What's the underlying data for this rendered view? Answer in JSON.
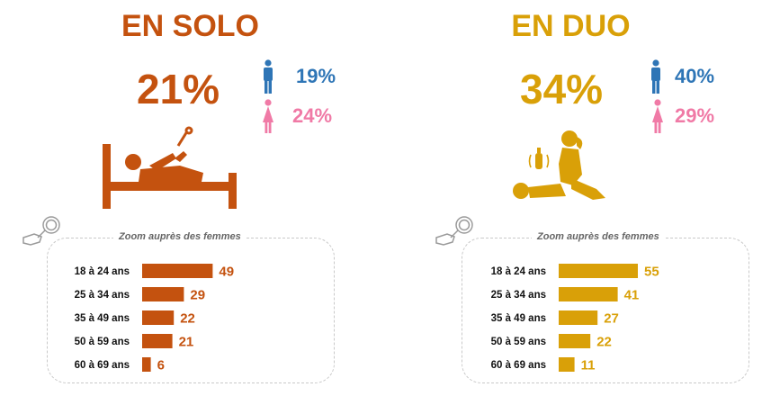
{
  "colors": {
    "solo": "#c4520f",
    "duo": "#d9a008",
    "male": "#2e75b6",
    "female": "#f07aa6"
  },
  "icons": {
    "male": "man-icon",
    "female": "woman-icon",
    "solo": "solo-illustration",
    "duo": "duo-illustration",
    "zoom": "magnifier-hand-icon"
  },
  "solo": {
    "title": "EN SOLO",
    "total": "21%",
    "male_pct": "19%",
    "female_pct": "24%",
    "zoom_label": "Zoom auprès des femmes"
  },
  "duo": {
    "title": "EN DUO",
    "total": "34%",
    "male_pct": "40%",
    "female_pct": "29%",
    "zoom_label": "Zoom auprès des femmes"
  },
  "chart_data": [
    {
      "type": "bar",
      "orientation": "horizontal",
      "categories": [
        "18 à 24 ans",
        "25 à 34 ans",
        "35 à 49 ans",
        "50 à 59 ans",
        "60 à 69 ans"
      ],
      "values": [
        49,
        29,
        22,
        21,
        6
      ],
      "title": "Zoom auprès des femmes"
    },
    {
      "type": "bar",
      "orientation": "horizontal",
      "categories": [
        "18 à 24 ans",
        "25 à 34 ans",
        "35 à 49 ans",
        "50 à 59 ans",
        "60 à 69 ans"
      ],
      "values": [
        55,
        41,
        27,
        22,
        11
      ],
      "title": "Zoom auprès des femmes"
    }
  ]
}
